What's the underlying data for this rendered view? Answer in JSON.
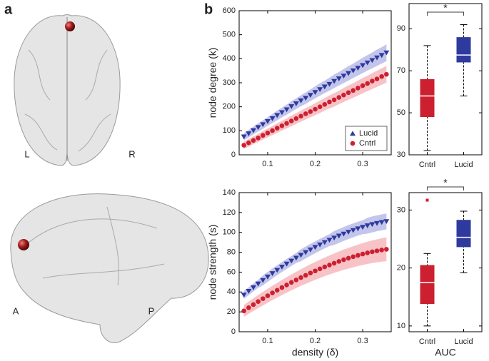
{
  "labels": {
    "panel_a": "a",
    "panel_b": "b",
    "left": "L",
    "right": "R",
    "anterior": "A",
    "posterior": "P"
  },
  "chart_data": [
    {
      "type": "line",
      "ylabel": "node degree (k)",
      "x": [
        0.05,
        0.06,
        0.07,
        0.08,
        0.09,
        0.1,
        0.11,
        0.12,
        0.13,
        0.14,
        0.15,
        0.16,
        0.17,
        0.18,
        0.19,
        0.2,
        0.21,
        0.22,
        0.23,
        0.24,
        0.25,
        0.26,
        0.27,
        0.28,
        0.29,
        0.3,
        0.31,
        0.32,
        0.33,
        0.34,
        0.35
      ],
      "xlim": [
        0.04,
        0.36
      ],
      "xticks": [
        0.1,
        0.2,
        0.3
      ],
      "ylim": [
        0,
        600
      ],
      "yticks": [
        0,
        100,
        200,
        300,
        400,
        500,
        600
      ],
      "legend": "lower right",
      "series": [
        {
          "name": "Lucid",
          "color": "#2e3a9e",
          "band_color": "#b9bbe8",
          "marker": "triangle",
          "values": [
            75,
            88,
            101,
            114,
            126,
            139,
            151,
            164,
            176,
            188,
            201,
            213,
            225,
            236,
            248,
            260,
            272,
            283,
            294,
            306,
            317,
            328,
            339,
            350,
            361,
            372,
            383,
            393,
            404,
            414,
            425
          ],
          "errors": [
            15,
            16,
            16,
            17,
            18,
            18,
            19,
            20,
            20,
            21,
            22,
            22,
            23,
            24,
            24,
            25,
            26,
            26,
            27,
            28,
            28,
            29,
            30,
            30,
            31,
            32,
            32,
            33,
            34,
            34,
            35
          ]
        },
        {
          "name": "Cntrl",
          "color": "#cc2030",
          "band_color": "#f7b8bd",
          "marker": "circle",
          "values": [
            40,
            50,
            60,
            70,
            81,
            91,
            101,
            111,
            121,
            131,
            141,
            151,
            161,
            171,
            180,
            190,
            200,
            210,
            220,
            229,
            239,
            249,
            259,
            268,
            278,
            288,
            297,
            307,
            316,
            326,
            335
          ],
          "errors": [
            15,
            16,
            16,
            17,
            18,
            18,
            19,
            20,
            20,
            21,
            22,
            22,
            23,
            24,
            24,
            25,
            26,
            26,
            27,
            28,
            28,
            29,
            30,
            30,
            31,
            32,
            32,
            33,
            34,
            34,
            35
          ]
        }
      ]
    },
    {
      "type": "line",
      "ylabel": "node strength (s)",
      "xlabel": "density (δ)",
      "x": [
        0.05,
        0.06,
        0.07,
        0.08,
        0.09,
        0.1,
        0.11,
        0.12,
        0.13,
        0.14,
        0.15,
        0.16,
        0.17,
        0.18,
        0.19,
        0.2,
        0.21,
        0.22,
        0.23,
        0.24,
        0.25,
        0.26,
        0.27,
        0.28,
        0.29,
        0.3,
        0.31,
        0.32,
        0.33,
        0.34,
        0.35
      ],
      "xlim": [
        0.04,
        0.36
      ],
      "xticks": [
        0.1,
        0.2,
        0.3
      ],
      "ylim": [
        0,
        140
      ],
      "yticks": [
        0,
        20,
        40,
        60,
        80,
        100,
        120,
        140
      ],
      "series": [
        {
          "color": "#2e3a9e",
          "band_color": "#b9bbe8",
          "marker": "triangle",
          "values": [
            37,
            40.8,
            44.5,
            48.2,
            51.7,
            55.2,
            58.6,
            61.9,
            65.1,
            68.2,
            71.2,
            74.2,
            77,
            79.8,
            82.5,
            85,
            87.5,
            89.9,
            92.2,
            94.4,
            96.4,
            98.4,
            100.3,
            102,
            103.7,
            105.2,
            106.7,
            108,
            109.1,
            110.1,
            111
          ],
          "errors": [
            4,
            4,
            4,
            4,
            5,
            5,
            5,
            5,
            5,
            5,
            5,
            5,
            6,
            6,
            6,
            6,
            6,
            6,
            6,
            7,
            7,
            7,
            7,
            7,
            7,
            7,
            8,
            8,
            8,
            8,
            8
          ]
        },
        {
          "color": "#cc2030",
          "band_color": "#f7b8bd",
          "marker": "circle",
          "values": [
            21,
            24.2,
            27.3,
            30.4,
            33.3,
            36.2,
            39.1,
            41.8,
            44.5,
            47.1,
            49.7,
            52.1,
            54.5,
            56.8,
            59.1,
            61.2,
            63.3,
            65.3,
            67.2,
            69,
            70.8,
            72.5,
            74,
            75.5,
            76.9,
            78.2,
            79.4,
            80.5,
            81.4,
            82.3,
            83
          ],
          "errors": [
            6,
            6.2,
            6.4,
            6.6,
            6.8,
            7,
            7.2,
            7.4,
            7.6,
            7.8,
            8,
            8.2,
            8.4,
            8.6,
            8.8,
            9,
            9.2,
            9.4,
            9.6,
            9.8,
            10,
            10.2,
            10.4,
            10.6,
            10.8,
            11,
            11.2,
            11.4,
            11.6,
            11.8,
            12
          ]
        }
      ]
    },
    {
      "type": "box",
      "categories": [
        "Cntrl",
        "Lucid"
      ],
      "colors": [
        "#cc2030",
        "#2e3a9e"
      ],
      "ylim": [
        30,
        102
      ],
      "yticks": [
        30,
        50,
        70,
        90
      ],
      "whisker_low": [
        32,
        58
      ],
      "q1": [
        48,
        74
      ],
      "median": [
        58,
        77.5
      ],
      "q3": [
        66,
        86
      ],
      "whisker_high": [
        82,
        92
      ],
      "outliers": [
        [],
        []
      ],
      "annotation": "*"
    },
    {
      "type": "box",
      "categories": [
        "Cntrl",
        "Lucid"
      ],
      "colors": [
        "#cc2030",
        "#2e3a9e"
      ],
      "xlabel": "AUC",
      "ylim": [
        9,
        33
      ],
      "yticks": [
        10,
        20,
        30
      ],
      "whisker_low": [
        10,
        19.2
      ],
      "q1": [
        13.8,
        23.6
      ],
      "median": [
        17.5,
        25.3
      ],
      "q3": [
        20.5,
        28.3
      ],
      "whisker_high": [
        22.5,
        29.8
      ],
      "outliers": [
        [
          31.7
        ],
        []
      ],
      "annotation": "*"
    }
  ]
}
